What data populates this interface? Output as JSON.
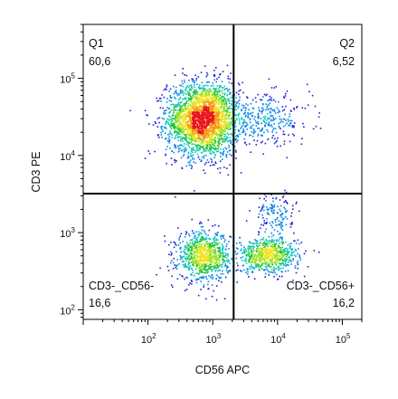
{
  "chart_data": {
    "type": "scatter",
    "xlabel": "CD56 APC",
    "ylabel": "CD3 PE",
    "x_scale": "log",
    "y_scale": "log",
    "xlim": [
      10,
      200000
    ],
    "ylim": [
      75,
      500000
    ],
    "x_ticks": [
      {
        "value": 100,
        "base": "10",
        "exp": "2"
      },
      {
        "value": 1000,
        "base": "10",
        "exp": "3"
      },
      {
        "value": 10000,
        "base": "10",
        "exp": "4"
      },
      {
        "value": 100000,
        "base": "10",
        "exp": "5"
      }
    ],
    "y_ticks": [
      {
        "value": 100,
        "base": "10",
        "exp": "2"
      },
      {
        "value": 1000,
        "base": "10",
        "exp": "3"
      },
      {
        "value": 10000,
        "base": "10",
        "exp": "4"
      },
      {
        "value": 100000,
        "base": "10",
        "exp": "5"
      }
    ],
    "gate": {
      "x": 2100,
      "y": 3200
    },
    "quadrants": [
      {
        "id": "q1",
        "name": "Q1",
        "percent": "60,6",
        "corner": "top-left"
      },
      {
        "id": "q2",
        "name": "Q2",
        "percent": "6,52",
        "corner": "top-right"
      },
      {
        "id": "q3",
        "name": "CD3-_CD56-",
        "percent": "16,6",
        "corner": "bottom-left"
      },
      {
        "id": "q4",
        "name": "CD3-_CD56+",
        "percent": "16,2",
        "corner": "bottom-right"
      }
    ],
    "populations": [
      {
        "center": [
          700,
          30000
        ],
        "spread": [
          0.28,
          0.24
        ],
        "count": 2600
      },
      {
        "center": [
          7000,
          30000
        ],
        "spread": [
          0.33,
          0.16
        ],
        "count": 280
      },
      {
        "center": [
          700,
          500
        ],
        "spread": [
          0.2,
          0.16
        ],
        "count": 850
      },
      {
        "center": [
          7000,
          520
        ],
        "spread": [
          0.24,
          0.11
        ],
        "count": 700
      },
      {
        "center": [
          9000,
          1800
        ],
        "spread": [
          0.15,
          0.13
        ],
        "count": 140
      }
    ],
    "density_colors": [
      "#1f1fd8",
      "#0a86e6",
      "#10c7c0",
      "#1fc43a",
      "#9be41c",
      "#f2e21a",
      "#f79a12",
      "#e8141c"
    ],
    "grid": false,
    "legend": "none"
  }
}
